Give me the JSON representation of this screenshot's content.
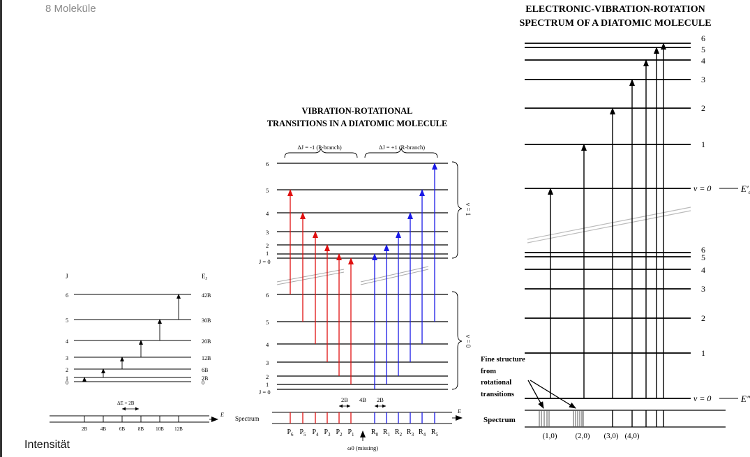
{
  "page": {
    "header": "8 Moleküle",
    "footer": "Intensität"
  },
  "rotational": {
    "j_header": "J",
    "e_header": "E",
    "e_sub": "J",
    "levels": [
      {
        "j": "0",
        "e": "0"
      },
      {
        "j": "1",
        "e": "2B"
      },
      {
        "j": "2",
        "e": "6B"
      },
      {
        "j": "3",
        "e": "12B"
      },
      {
        "j": "4",
        "e": "20B"
      },
      {
        "j": "5",
        "e": "30B"
      },
      {
        "j": "6",
        "e": "42B"
      }
    ],
    "delta_label": "ΔE = 2B",
    "axis_symbol": "E",
    "ticks": [
      "2B",
      "4B",
      "6B",
      "8B",
      "10B",
      "12B"
    ]
  },
  "vibrational": {
    "title_line1": "VIBRATION-ROTATIONAL",
    "title_line2": "TRANSITIONS IN A DIATOMIC MOLECULE",
    "p_branch_label": "ΔJ = -1 (P-branch)",
    "r_branch_label": "ΔJ = +1 (R-branch)",
    "upper_levels": [
      "6",
      "5",
      "4",
      "3",
      "2",
      "1",
      "J = 0"
    ],
    "lower_levels": [
      "6",
      "5",
      "4",
      "3",
      "2",
      "1",
      "J = 0"
    ],
    "upper_state": "v = 1",
    "lower_state": "v = 0",
    "spacing_labels": [
      "2B",
      "4B",
      "2B"
    ],
    "spectrum_label": "Spectrum",
    "axis_symbol": "E",
    "p_lines": [
      "P6",
      "P5",
      "P4",
      "P3",
      "P2",
      "P1"
    ],
    "r_lines": [
      "R0",
      "R1",
      "R2",
      "R3",
      "R4",
      "R5"
    ],
    "missing_label": "ω0 (missing)",
    "p_color": "#e01010",
    "r_color": "#1a1ae6"
  },
  "electronic": {
    "title_line1": "ELECTRONIC-VIBRATION-ROTATION",
    "title_line2": "SPECTRUM OF A DIATOMIC MOLECULE",
    "upper_levels": [
      "6",
      "5",
      "4",
      "3",
      "2",
      "1",
      "v = 0"
    ],
    "lower_levels": [
      "6",
      "5",
      "4",
      "3",
      "2",
      "1",
      "v = 0"
    ],
    "upper_energy": "E′",
    "lower_energy": "E″",
    "energy_sub": "el",
    "fine_structure": [
      "Fine structure",
      "from",
      "rotational",
      "transitions"
    ],
    "spectrum_label": "Spectrum",
    "band_labels": [
      "(1,0)",
      "(2,0)",
      "(3,0)",
      "(4,0)"
    ]
  }
}
